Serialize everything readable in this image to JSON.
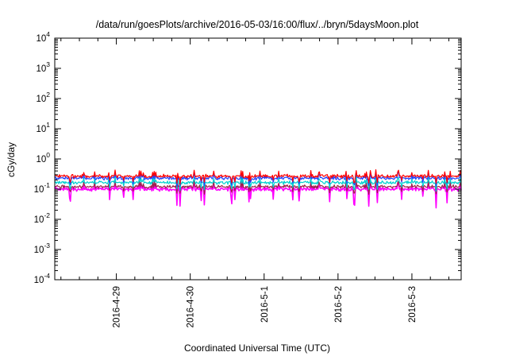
{
  "chart_data": {
    "type": "line",
    "title": "/data/run/goesPlots/archive/2016-05-03/16:00/flux/../bryn/5daysMoon.plot",
    "xlabel": "Coordinated Universal Time (UTC)",
    "ylabel": "cGy/day",
    "yscale": "log",
    "ylim": [
      0.0001,
      10000
    ],
    "xlim": [
      "2016-04-28 04:00",
      "2016-05-03 16:00"
    ],
    "grid": false,
    "legend": "none",
    "x_ticks": [
      "2016-4-29",
      "2016-4-30",
      "2016-5-1",
      "2016-5-2",
      "2016-5-3"
    ],
    "y_ticks": [
      {
        "base": "10",
        "exp": "-4"
      },
      {
        "base": "10",
        "exp": "-3"
      },
      {
        "base": "10",
        "exp": "-2"
      },
      {
        "base": "10",
        "exp": "-1"
      },
      {
        "base": "10",
        "exp": "0"
      },
      {
        "base": "10",
        "exp": "1"
      },
      {
        "base": "10",
        "exp": "2"
      },
      {
        "base": "10",
        "exp": "3"
      },
      {
        "base": "10",
        "exp": "4"
      }
    ],
    "series": [
      {
        "color": "#ff00ff",
        "base_value": 0.1,
        "variability": 0.45
      },
      {
        "color": "#a0204a",
        "base_value": 0.12,
        "variability": 0.25
      },
      {
        "color": "#00d0d0",
        "base_value": 0.165,
        "variability": 0.25
      },
      {
        "color": "#2040ff",
        "base_value": 0.23,
        "variability": 0.3
      },
      {
        "color": "#ff0000",
        "base_value": 0.27,
        "variability": 0.3
      }
    ]
  }
}
